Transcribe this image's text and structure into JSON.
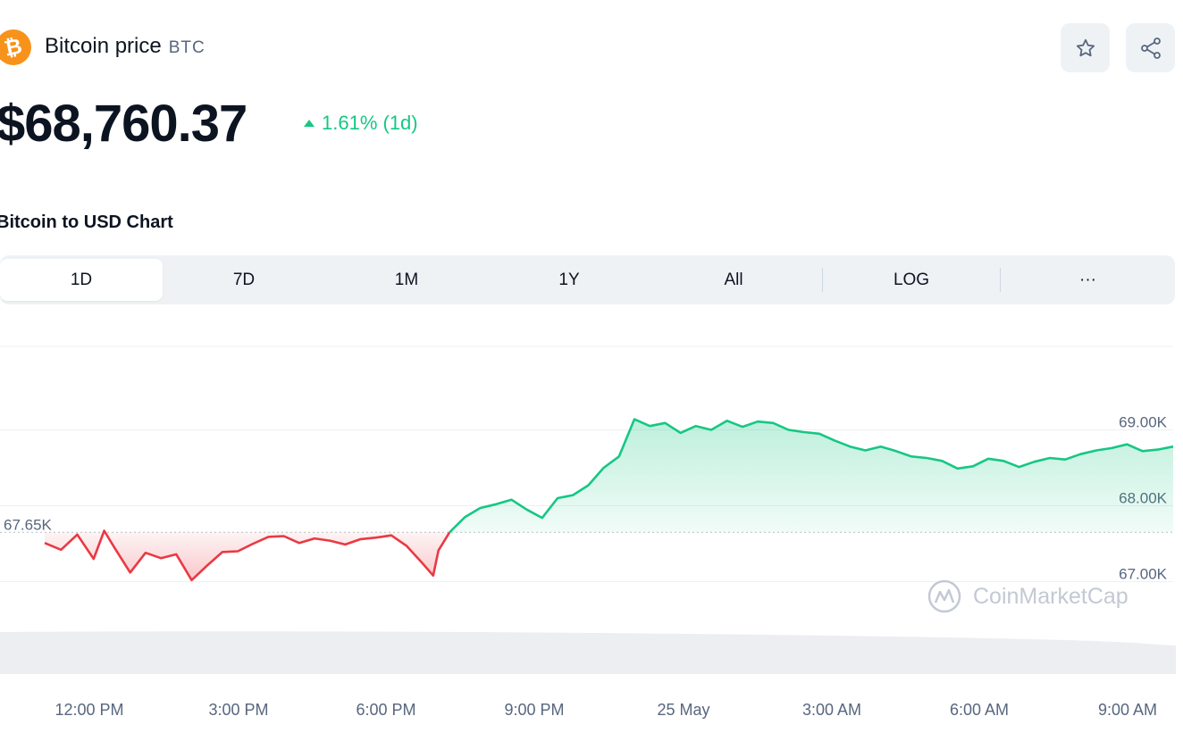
{
  "header": {
    "coin_icon_glyph": "₿",
    "coin_name": "Bitcoin price",
    "symbol": "BTC",
    "favorite_icon": "star-icon",
    "share_icon": "share-icon"
  },
  "price": {
    "value": "$68,760.37",
    "change": "1.61% (1d)",
    "change_direction": "up"
  },
  "chart_heading": "Bitcoin to USD Chart",
  "tabs": [
    "1D",
    "7D",
    "1M",
    "1Y",
    "All",
    "LOG",
    "···"
  ],
  "active_tab": "1D",
  "watermark": "CoinMarketCap",
  "colors": {
    "up": "#16c784",
    "down": "#ea3943",
    "brand": "#f7931a"
  },
  "chart_data": {
    "type": "area",
    "title": "",
    "xlabel": "",
    "ylabel": "",
    "x_ticks": [
      "12:00 PM",
      "3:00 PM",
      "6:00 PM",
      "9:00 PM",
      "25 May",
      "3:00 AM",
      "6:00 AM",
      "9:00 AM"
    ],
    "y_ticks": [
      "69.00K",
      "68.00K",
      "67.00K"
    ],
    "ylim": [
      66100,
      70100
    ],
    "baseline": {
      "label": "67.65K",
      "value": 67650
    },
    "series": [
      {
        "x_hours_from_start": [
          0,
          0.34,
          0.68,
          1.02,
          1.24,
          1.46,
          1.78,
          2.1,
          2.42,
          2.74,
          3.06,
          3.38,
          3.7,
          4.02,
          4.34,
          4.66,
          4.98,
          5.3,
          5.62,
          5.94,
          6.26,
          6.58,
          6.9,
          7.22,
          7.54,
          7.87,
          8.09,
          8.2,
          8.43,
          8.75,
          9.07,
          9.4,
          9.72,
          10.04,
          10.36,
          10.68,
          11.0,
          11.32,
          11.64,
          11.96,
          12.28,
          12.6,
          12.92,
          13.24,
          13.56,
          13.88,
          14.21,
          14.53,
          14.85,
          15.17,
          15.49,
          15.81,
          16.13,
          16.45,
          16.77,
          17.09,
          17.41,
          17.73,
          18.05,
          18.37,
          18.69,
          19.01,
          19.33,
          19.65,
          19.97,
          20.29,
          20.61,
          20.93,
          21.25,
          21.57,
          21.9,
          22.22,
          22.54,
          22.86,
          23.18,
          23.5
        ],
        "y": [
          67510,
          67420,
          67620,
          67300,
          67670,
          67440,
          67120,
          67380,
          67310,
          67360,
          67020,
          67210,
          67390,
          67400,
          67500,
          67590,
          67600,
          67510,
          67570,
          67540,
          67490,
          67560,
          67580,
          67610,
          67470,
          67240,
          67080,
          67410,
          67650,
          67850,
          67970,
          68020,
          68080,
          67950,
          67840,
          68100,
          68140,
          68270,
          68500,
          68650,
          69140,
          69050,
          69090,
          68960,
          69050,
          69000,
          69120,
          69040,
          69110,
          69090,
          69000,
          68970,
          68950,
          68860,
          68780,
          68730,
          68780,
          68720,
          68650,
          68630,
          68590,
          68490,
          68520,
          68620,
          68590,
          68510,
          68580,
          68630,
          68610,
          68680,
          68730,
          68760,
          68810,
          68720,
          68740,
          68780
        ]
      }
    ]
  }
}
